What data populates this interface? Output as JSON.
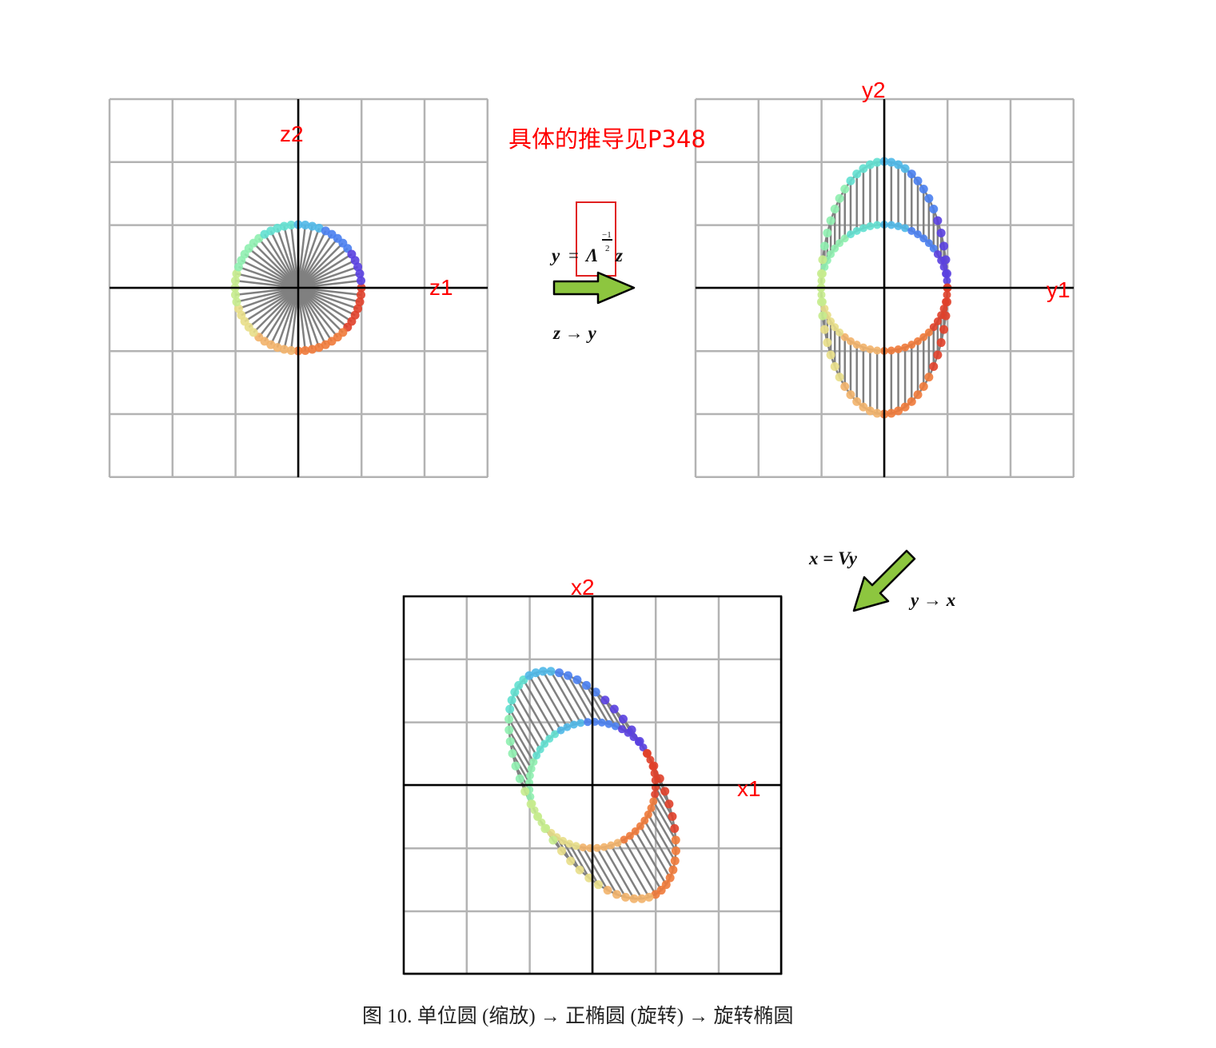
{
  "note": "具体的推导见P348",
  "caption": "图 10. 单位圆 (缩放) → 正椭圆 (旋转) → 旋转椭圆",
  "panels": [
    {
      "id": "z",
      "xlabel": "z1",
      "ylabel": "z2"
    },
    {
      "id": "y",
      "xlabel": "y1",
      "ylabel": "y2"
    },
    {
      "id": "x",
      "xlabel": "x1",
      "ylabel": "x2"
    }
  ],
  "transform1": {
    "equation_lhs": "y",
    "equation_eq": "=",
    "equation_op": "Λ",
    "exponent_num": "−1",
    "exponent_den": "2",
    "equation_rhs": "z",
    "mapping": "z → y"
  },
  "transform2": {
    "equation": "x = Vy",
    "mapping": "y → x"
  },
  "colors": {
    "grid": "#b3b3b3",
    "axis": "#000000",
    "spoke": "#808080",
    "label": "#ff0000",
    "arrow": "#8dc63f",
    "highlight_box": "#e02020"
  }
}
